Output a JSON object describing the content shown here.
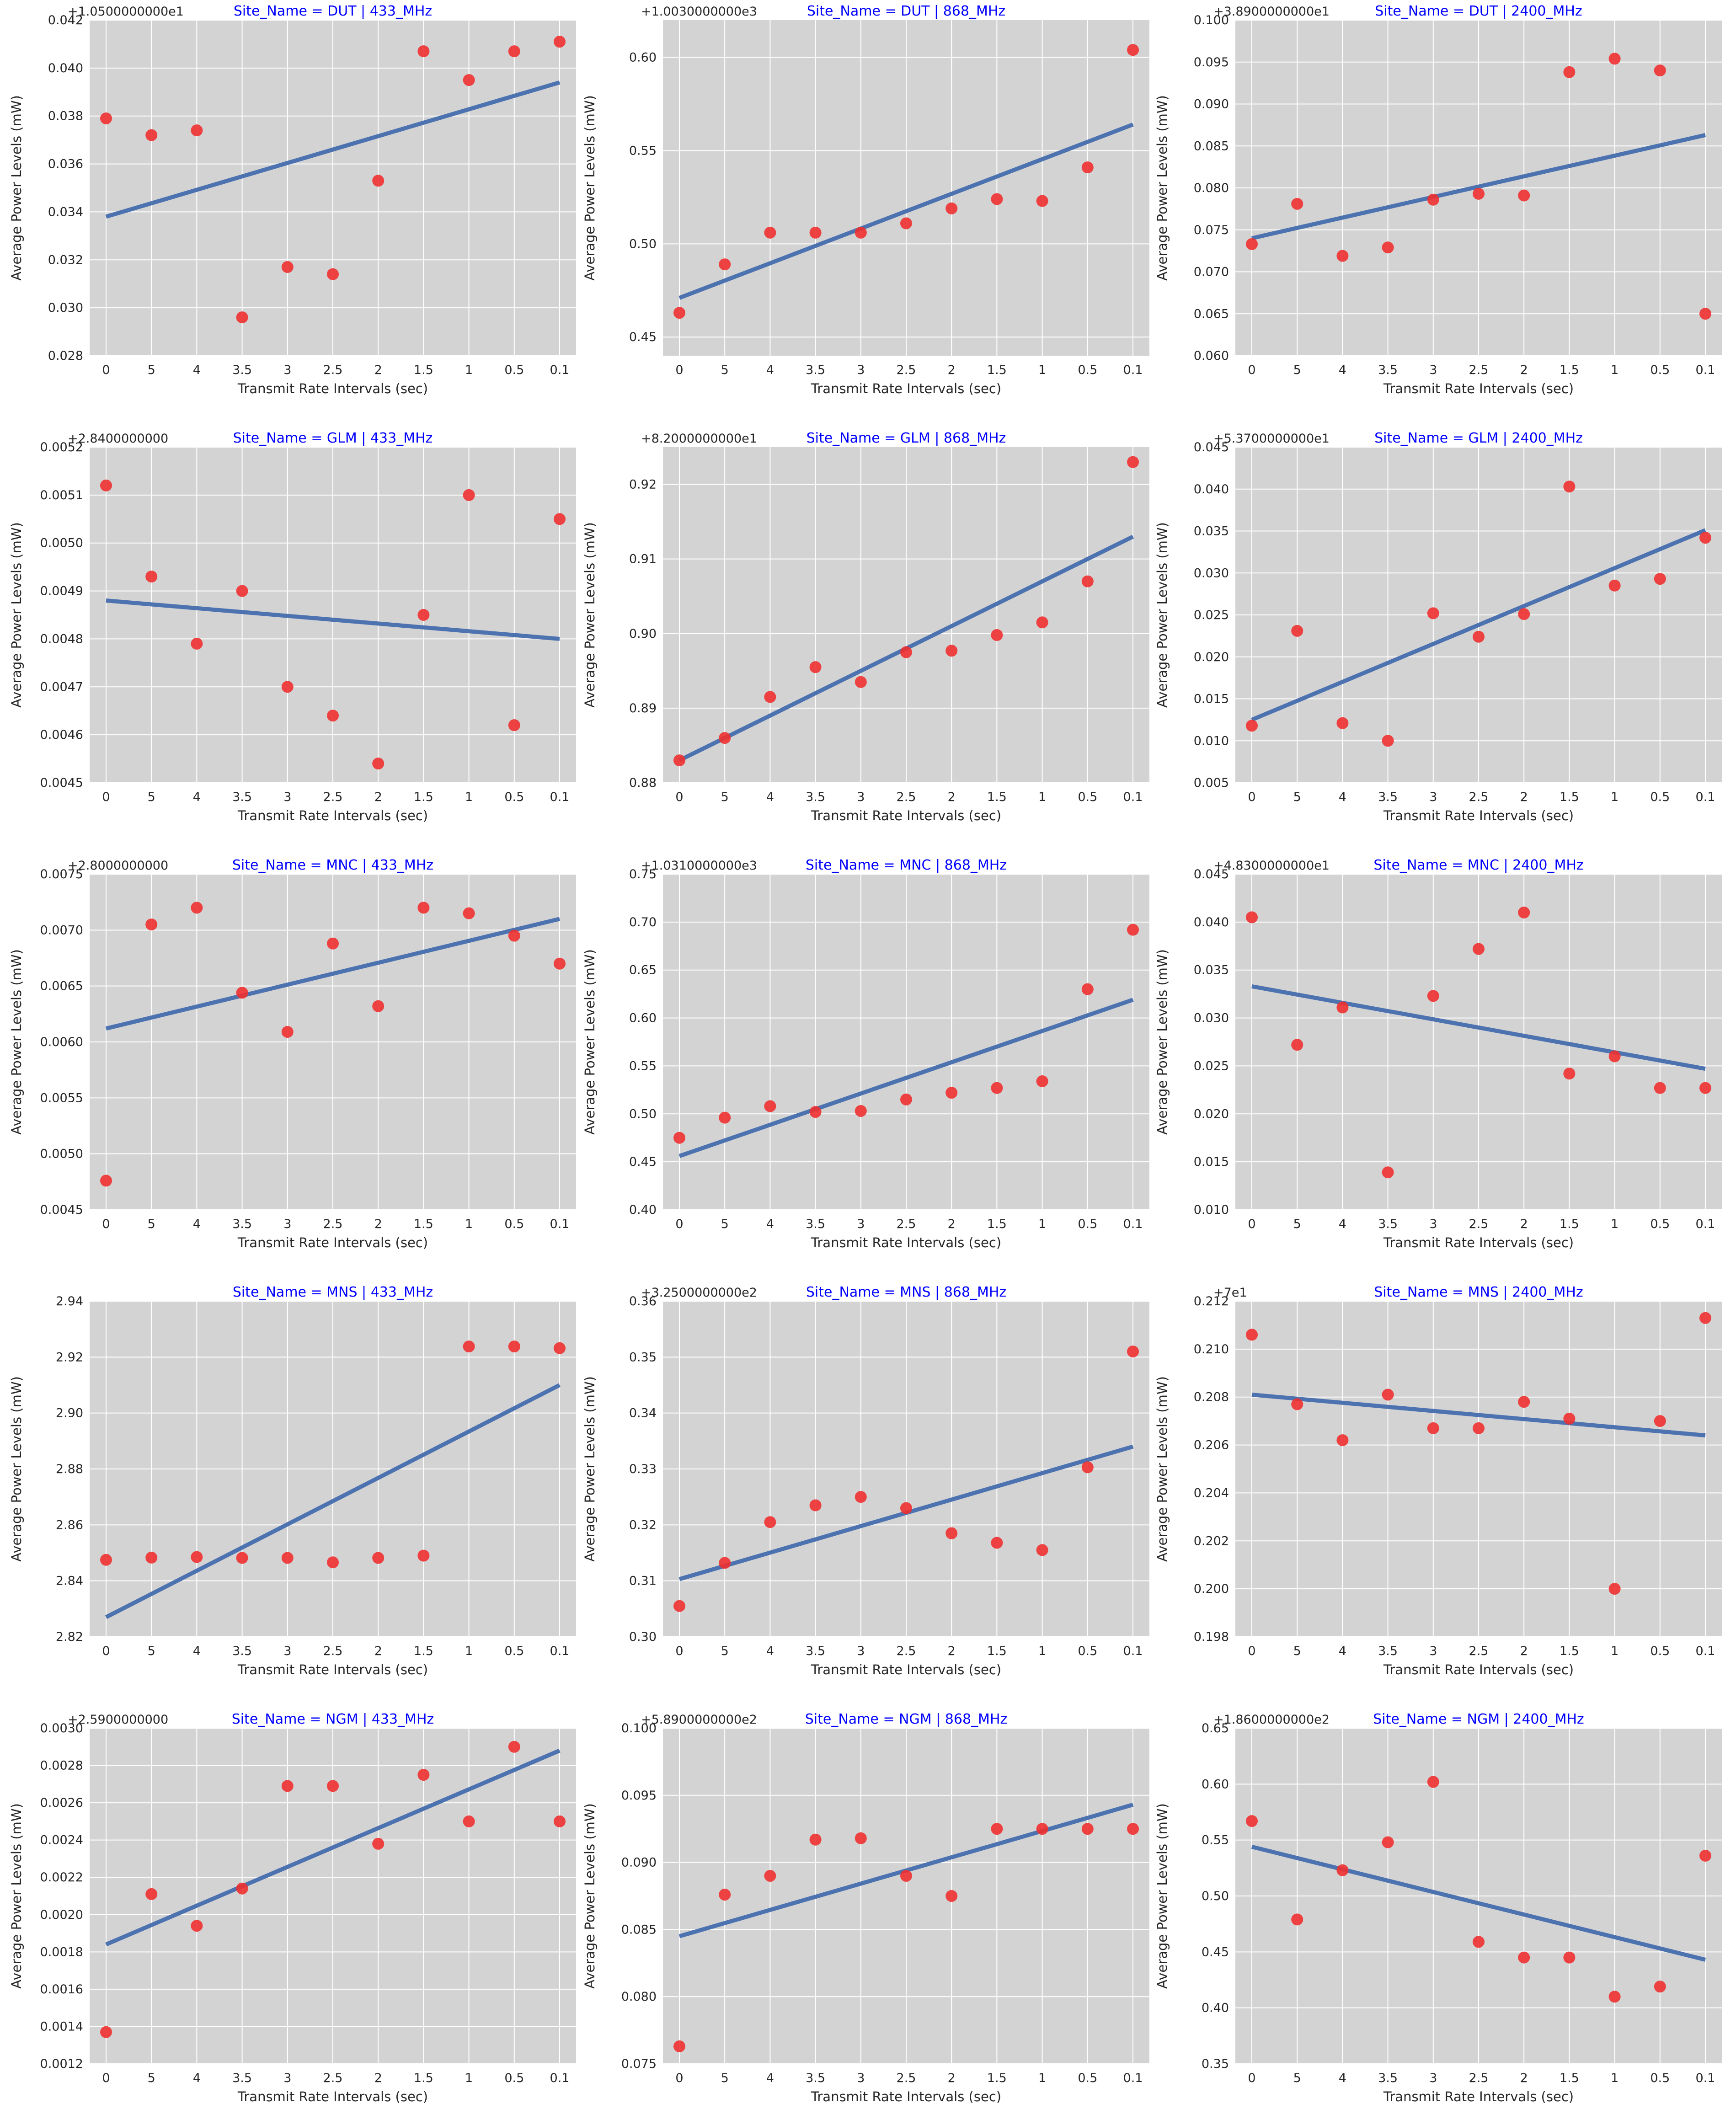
{
  "figure": {
    "colors": {
      "plot_bg": "#d3d3d3",
      "grid": "#ffffff",
      "points": "#f03030",
      "fit_line": "#4c72b0",
      "title": "#0000ff",
      "text": "#262626"
    }
  },
  "chart_data": [
    {
      "type": "scatter",
      "title": "Site_Name = DUT | 433_MHz",
      "xlabel": "Transmit Rate Intervals (sec)",
      "ylabel": "Average Power Levels (mW)",
      "categories": [
        "0",
        "5",
        "4",
        "3.5",
        "3",
        "2.5",
        "2",
        "1.5",
        "1",
        "0.5",
        "0.1"
      ],
      "offset": "+1.0500000000e1",
      "ylim": [
        0.028,
        0.042
      ],
      "yticks": [
        "0.028",
        "0.030",
        "0.032",
        "0.034",
        "0.036",
        "0.038",
        "0.040",
        "0.042"
      ],
      "values": [
        0.0379,
        0.0372,
        0.0374,
        0.0296,
        0.0317,
        0.0314,
        0.0353,
        0.0407,
        0.0395,
        0.0407,
        0.0411
      ],
      "fit": [
        0.0338,
        0.0394
      ]
    },
    {
      "type": "scatter",
      "title": "Site_Name = DUT | 868_MHz",
      "xlabel": "Transmit Rate Intervals (sec)",
      "ylabel": "Average Power Levels (mW)",
      "categories": [
        "0",
        "5",
        "4",
        "3.5",
        "3",
        "2.5",
        "2",
        "1.5",
        "1",
        "0.5",
        "0.1"
      ],
      "offset": "+1.0030000000e3",
      "ylim": [
        0.44,
        0.62
      ],
      "yticks": [
        "0.45",
        "0.50",
        "0.55",
        "0.60"
      ],
      "values": [
        0.463,
        0.489,
        0.506,
        0.506,
        0.506,
        0.511,
        0.519,
        0.524,
        0.523,
        0.541,
        0.604
      ],
      "fit": [
        0.471,
        0.564
      ]
    },
    {
      "type": "scatter",
      "title": "Site_Name = DUT | 2400_MHz",
      "xlabel": "Transmit Rate Intervals (sec)",
      "ylabel": "Average Power Levels (mW)",
      "categories": [
        "0",
        "5",
        "4",
        "3.5",
        "3",
        "2.5",
        "2",
        "1.5",
        "1",
        "0.5",
        "0.1"
      ],
      "offset": "+3.8900000000e1",
      "ylim": [
        0.06,
        0.1
      ],
      "yticks": [
        "0.060",
        "0.065",
        "0.070",
        "0.075",
        "0.080",
        "0.085",
        "0.090",
        "0.095",
        "0.100"
      ],
      "values": [
        0.0733,
        0.0781,
        0.0719,
        0.0729,
        0.0786,
        0.0793,
        0.0791,
        0.0938,
        0.0954,
        0.094,
        0.065
      ],
      "fit": [
        0.074,
        0.0863
      ]
    },
    {
      "type": "scatter",
      "title": "Site_Name = GLM | 433_MHz",
      "xlabel": "Transmit Rate Intervals (sec)",
      "ylabel": "Average Power Levels (mW)",
      "categories": [
        "0",
        "5",
        "4",
        "3.5",
        "3",
        "2.5",
        "2",
        "1.5",
        "1",
        "0.5",
        "0.1"
      ],
      "offset": "+2.8400000000",
      "ylim": [
        0.0045,
        0.0052
      ],
      "yticks": [
        "0.0045",
        "0.0046",
        "0.0047",
        "0.0048",
        "0.0049",
        "0.0050",
        "0.0051",
        "0.0052"
      ],
      "values": [
        0.00512,
        0.00493,
        0.00479,
        0.0049,
        0.0047,
        0.00464,
        0.00454,
        0.00485,
        0.0051,
        0.00462,
        0.00505
      ],
      "fit": [
        0.00488,
        0.0048
      ]
    },
    {
      "type": "scatter",
      "title": "Site_Name = GLM | 868_MHz",
      "xlabel": "Transmit Rate Intervals (sec)",
      "ylabel": "Average Power Levels (mW)",
      "categories": [
        "0",
        "5",
        "4",
        "3.5",
        "3",
        "2.5",
        "2",
        "1.5",
        "1",
        "0.5",
        "0.1"
      ],
      "offset": "+8.2000000000e1",
      "ylim": [
        0.88,
        0.925
      ],
      "yticks": [
        "0.88",
        "0.89",
        "0.90",
        "0.91",
        "0.92"
      ],
      "values": [
        0.883,
        0.886,
        0.8915,
        0.8955,
        0.8935,
        0.8975,
        0.8977,
        0.8998,
        0.9015,
        0.907,
        0.923
      ],
      "fit": [
        0.883,
        0.913
      ]
    },
    {
      "type": "scatter",
      "title": "Site_Name = GLM | 2400_MHz",
      "xlabel": "Transmit Rate Intervals (sec)",
      "ylabel": "Average Power Levels (mW)",
      "categories": [
        "0",
        "5",
        "4",
        "3.5",
        "3",
        "2.5",
        "2",
        "1.5",
        "1",
        "0.5",
        "0.1"
      ],
      "offset": "+5.3700000000e1",
      "ylim": [
        0.005,
        0.045
      ],
      "yticks": [
        "0.005",
        "0.010",
        "0.015",
        "0.020",
        "0.025",
        "0.030",
        "0.035",
        "0.040",
        "0.045"
      ],
      "values": [
        0.0118,
        0.0231,
        0.0121,
        0.01,
        0.0252,
        0.0224,
        0.0251,
        0.0403,
        0.0285,
        0.0293,
        0.0342
      ],
      "fit": [
        0.0125,
        0.0351
      ]
    },
    {
      "type": "scatter",
      "title": "Site_Name = MNC | 433_MHz",
      "xlabel": "Transmit Rate Intervals (sec)",
      "ylabel": "Average Power Levels (mW)",
      "categories": [
        "0",
        "5",
        "4",
        "3.5",
        "3",
        "2.5",
        "2",
        "1.5",
        "1",
        "0.5",
        "0.1"
      ],
      "offset": "+2.8000000000",
      "ylim": [
        0.0045,
        0.0075
      ],
      "yticks": [
        "0.0045",
        "0.0050",
        "0.0055",
        "0.0060",
        "0.0065",
        "0.0070",
        "0.0075"
      ],
      "values": [
        0.00476,
        0.00705,
        0.0072,
        0.00644,
        0.00609,
        0.00688,
        0.00632,
        0.0072,
        0.00715,
        0.00695,
        0.0067
      ],
      "fit": [
        0.00612,
        0.0071
      ]
    },
    {
      "type": "scatter",
      "title": "Site_Name = MNC | 868_MHz",
      "xlabel": "Transmit Rate Intervals (sec)",
      "ylabel": "Average Power Levels (mW)",
      "categories": [
        "0",
        "5",
        "4",
        "3.5",
        "3",
        "2.5",
        "2",
        "1.5",
        "1",
        "0.5",
        "0.1"
      ],
      "offset": "+1.0310000000e3",
      "ylim": [
        0.4,
        0.75
      ],
      "yticks": [
        "0.40",
        "0.45",
        "0.50",
        "0.55",
        "0.60",
        "0.65",
        "0.70",
        "0.75"
      ],
      "values": [
        0.475,
        0.496,
        0.508,
        0.502,
        0.503,
        0.515,
        0.522,
        0.527,
        0.534,
        0.63,
        0.692
      ],
      "fit": [
        0.456,
        0.619
      ]
    },
    {
      "type": "scatter",
      "title": "Site_Name = MNC | 2400_MHz",
      "xlabel": "Transmit Rate Intervals (sec)",
      "ylabel": "Average Power Levels (mW)",
      "categories": [
        "0",
        "5",
        "4",
        "3.5",
        "3",
        "2.5",
        "2",
        "1.5",
        "1",
        "0.5",
        "0.1"
      ],
      "offset": "+4.8300000000e1",
      "ylim": [
        0.01,
        0.045
      ],
      "yticks": [
        "0.010",
        "0.015",
        "0.020",
        "0.025",
        "0.030",
        "0.035",
        "0.040",
        "0.045"
      ],
      "values": [
        0.0405,
        0.0272,
        0.0311,
        0.0139,
        0.0323,
        0.0372,
        0.041,
        0.0242,
        0.026,
        0.0227,
        0.0227
      ],
      "fit": [
        0.0333,
        0.0247
      ]
    },
    {
      "type": "scatter",
      "title": "Site_Name = MNS | 433_MHz",
      "xlabel": "Transmit Rate Intervals (sec)",
      "ylabel": "Average Power Levels (mW)",
      "categories": [
        "0",
        "5",
        "4",
        "3.5",
        "3",
        "2.5",
        "2",
        "1.5",
        "1",
        "0.5",
        "0.1"
      ],
      "offset": "",
      "ylim": [
        2.82,
        2.94
      ],
      "yticks": [
        "2.82",
        "2.84",
        "2.86",
        "2.88",
        "2.90",
        "2.92",
        "2.94"
      ],
      "values": [
        2.8475,
        2.8483,
        2.8485,
        2.8482,
        2.8482,
        2.8466,
        2.8482,
        2.849,
        2.9238,
        2.9238,
        2.9232
      ],
      "fit": [
        2.827,
        2.91
      ]
    },
    {
      "type": "scatter",
      "title": "Site_Name = MNS | 868_MHz",
      "xlabel": "Transmit Rate Intervals (sec)",
      "ylabel": "Average Power Levels (mW)",
      "categories": [
        "0",
        "5",
        "4",
        "3.5",
        "3",
        "2.5",
        "2",
        "1.5",
        "1",
        "0.5",
        "0.1"
      ],
      "offset": "+3.2500000000e2",
      "ylim": [
        0.3,
        0.36
      ],
      "yticks": [
        "0.30",
        "0.31",
        "0.32",
        "0.33",
        "0.34",
        "0.35",
        "0.36"
      ],
      "values": [
        0.3055,
        0.3132,
        0.3205,
        0.3235,
        0.325,
        0.323,
        0.3185,
        0.3168,
        0.3155,
        0.3303,
        0.351
      ],
      "fit": [
        0.3103,
        0.334
      ]
    },
    {
      "type": "scatter",
      "title": "Site_Name = MNS | 2400_MHz",
      "xlabel": "Transmit Rate Intervals (sec)",
      "ylabel": "Average Power Levels (mW)",
      "categories": [
        "0",
        "5",
        "4",
        "3.5",
        "3",
        "2.5",
        "2",
        "1.5",
        "1",
        "0.5",
        "0.1"
      ],
      "offset": "+7e1",
      "ylim": [
        0.198,
        0.212
      ],
      "yticks": [
        "0.198",
        "0.200",
        "0.202",
        "0.204",
        "0.206",
        "0.208",
        "0.210",
        "0.212"
      ],
      "values": [
        0.2106,
        0.2077,
        0.2062,
        0.2081,
        0.2067,
        0.2067,
        0.2078,
        0.2071,
        0.2,
        0.207,
        0.2113
      ],
      "fit": [
        0.2081,
        0.2064
      ]
    },
    {
      "type": "scatter",
      "title": "Site_Name = NGM | 433_MHz",
      "xlabel": "Transmit Rate Intervals (sec)",
      "ylabel": "Average Power Levels (mW)",
      "categories": [
        "0",
        "5",
        "4",
        "3.5",
        "3",
        "2.5",
        "2",
        "1.5",
        "1",
        "0.5",
        "0.1"
      ],
      "offset": "+2.5900000000",
      "ylim": [
        0.0012,
        0.003
      ],
      "yticks": [
        "0.0012",
        "0.0014",
        "0.0016",
        "0.0018",
        "0.0020",
        "0.0022",
        "0.0024",
        "0.0026",
        "0.0028",
        "0.0030"
      ],
      "values": [
        0.00137,
        0.00211,
        0.00194,
        0.00214,
        0.00269,
        0.00269,
        0.00238,
        0.00275,
        0.0025,
        0.0029,
        0.0025
      ],
      "fit": [
        0.00184,
        0.00288
      ]
    },
    {
      "type": "scatter",
      "title": "Site_Name = NGM | 868_MHz",
      "xlabel": "Transmit Rate Intervals (sec)",
      "ylabel": "Average Power Levels (mW)",
      "categories": [
        "0",
        "5",
        "4",
        "3.5",
        "3",
        "2.5",
        "2",
        "1.5",
        "1",
        "0.5",
        "0.1"
      ],
      "offset": "+5.8900000000e2",
      "ylim": [
        0.075,
        0.1
      ],
      "yticks": [
        "0.075",
        "0.080",
        "0.085",
        "0.090",
        "0.095",
        "0.100"
      ],
      "values": [
        0.0763,
        0.0876,
        0.089,
        0.0917,
        0.0918,
        0.089,
        0.0875,
        0.0925,
        0.0925,
        0.0925,
        0.0925
      ],
      "fit": [
        0.0845,
        0.0943
      ]
    },
    {
      "type": "scatter",
      "title": "Site_Name = NGM | 2400_MHz",
      "xlabel": "Transmit Rate Intervals (sec)",
      "ylabel": "Average Power Levels (mW)",
      "categories": [
        "0",
        "5",
        "4",
        "3.5",
        "3",
        "2.5",
        "2",
        "1.5",
        "1",
        "0.5",
        "0.1"
      ],
      "offset": "+1.8600000000e2",
      "ylim": [
        0.35,
        0.65
      ],
      "yticks": [
        "0.35",
        "0.40",
        "0.45",
        "0.50",
        "0.55",
        "0.60",
        "0.65"
      ],
      "values": [
        0.567,
        0.479,
        0.523,
        0.548,
        0.602,
        0.459,
        0.445,
        0.445,
        0.41,
        0.419,
        0.536
      ],
      "fit": [
        0.544,
        0.443
      ]
    }
  ]
}
